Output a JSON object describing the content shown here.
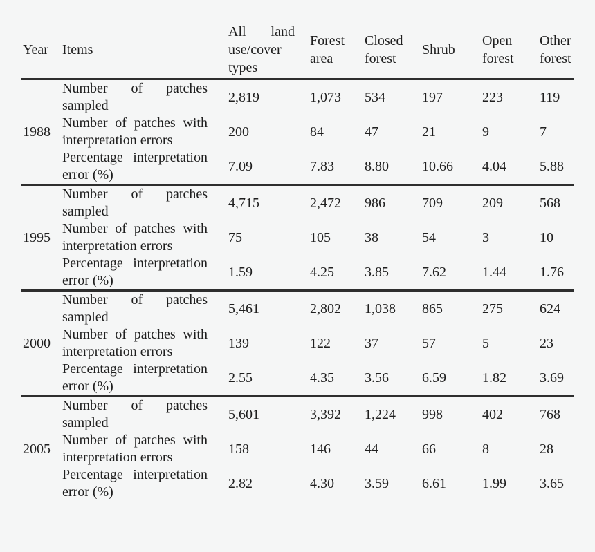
{
  "page": {
    "background_color": "#f5f6f6",
    "text_color": "#1f1f1f",
    "rule_color": "#2e2e2e"
  },
  "table": {
    "columns": [
      "Year",
      "Items",
      "All land use/cover types",
      "Forest area",
      "Closed forest",
      "Shrub",
      "Open forest",
      "Other forest"
    ],
    "row_items": [
      "Number of patches sampled",
      "Number of patches with interpretation errors",
      "Percentage interpretation error (%)"
    ],
    "groups": [
      {
        "year": "1988",
        "rows": [
          [
            "2,819",
            "1,073",
            "534",
            "197",
            "223",
            "119"
          ],
          [
            "200",
            "84",
            "47",
            "21",
            "9",
            "7"
          ],
          [
            "7.09",
            "7.83",
            "8.80",
            "10.66",
            "4.04",
            "5.88"
          ]
        ]
      },
      {
        "year": "1995",
        "rows": [
          [
            "4,715",
            "2,472",
            "986",
            "709",
            "209",
            "568"
          ],
          [
            "75",
            "105",
            "38",
            "54",
            "3",
            "10"
          ],
          [
            "1.59",
            "4.25",
            "3.85",
            "7.62",
            "1.44",
            "1.76"
          ]
        ]
      },
      {
        "year": "2000",
        "rows": [
          [
            "5,461",
            "2,802",
            "1,038",
            "865",
            "275",
            "624"
          ],
          [
            "139",
            "122",
            "37",
            "57",
            "5",
            "23"
          ],
          [
            "2.55",
            "4.35",
            "3.56",
            "6.59",
            "1.82",
            "3.69"
          ]
        ]
      },
      {
        "year": "2005",
        "rows": [
          [
            "5,601",
            "3,392",
            "1,224",
            "998",
            "402",
            "768"
          ],
          [
            "158",
            "146",
            "44",
            "66",
            "8",
            "28"
          ],
          [
            "2.82",
            "4.30",
            "3.59",
            "6.61",
            "1.99",
            "3.65"
          ]
        ]
      }
    ]
  }
}
